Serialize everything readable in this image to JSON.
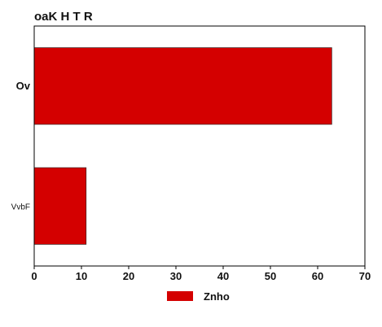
{
  "chart_data": {
    "type": "bar",
    "orientation": "horizontal",
    "title": "oaK H T R",
    "categories": [
      "Ov",
      "VvbF"
    ],
    "series": [
      {
        "name": "Znho",
        "values": [
          63,
          11
        ],
        "color": "#d40000"
      }
    ],
    "xlim": [
      0,
      70
    ],
    "xticks": [
      0,
      10,
      20,
      30,
      40,
      50,
      60,
      70
    ],
    "grid": false,
    "legend": "bottom-center"
  }
}
